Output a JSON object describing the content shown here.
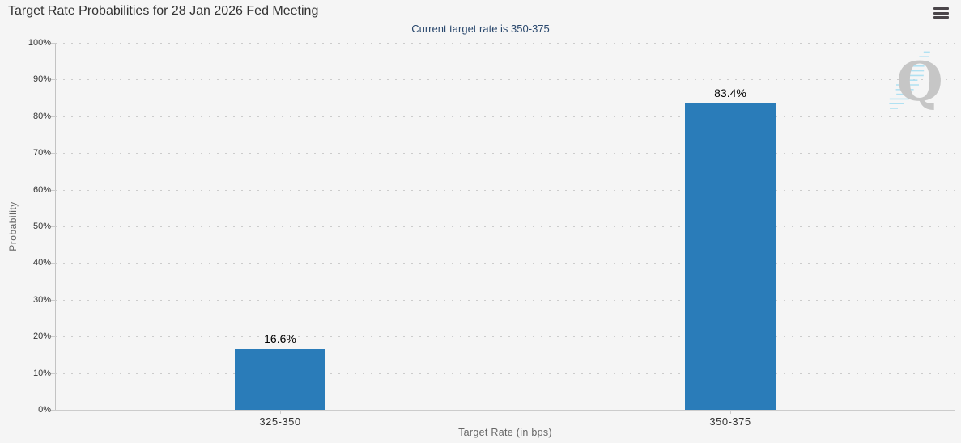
{
  "header": {
    "title": "Target Rate Probabilities for 28 Jan 2026 Fed Meeting",
    "subtitle": "Current target rate is 350-375"
  },
  "menu": {
    "icon": "hamburger-icon"
  },
  "watermark": {
    "letter": "Q"
  },
  "chart_data": {
    "type": "bar",
    "title": "Target Rate Probabilities for 28 Jan 2026 Fed Meeting",
    "subtitle": "Current target rate is 350-375",
    "categories": [
      "325-350",
      "350-375"
    ],
    "values": [
      16.6,
      83.4
    ],
    "data_labels": [
      "16.6%",
      "83.4%"
    ],
    "xlabel": "Target Rate (in bps)",
    "ylabel": "Probability",
    "ylim": [
      0,
      100
    ],
    "ytick_step": 10,
    "ytick_suffix": "%",
    "grid": "dotted-horizontal",
    "legend": "none",
    "bar_color": "#2a7cb9"
  },
  "colors": {
    "background": "#f5f5f5",
    "bar": "#2a7cb9",
    "subtitle_text": "#2a486d",
    "axis_text": "#333333",
    "axis_title_text": "#666666",
    "gridline": "#cccccc"
  }
}
